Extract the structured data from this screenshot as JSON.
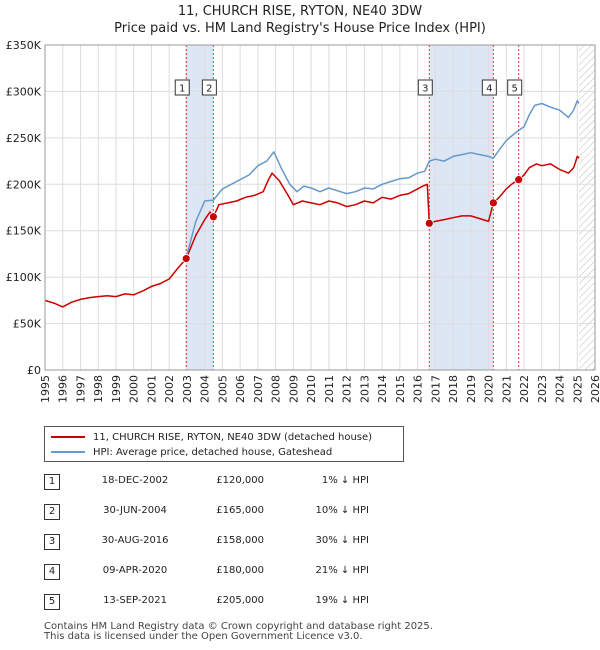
{
  "chart_data": {
    "type": "line",
    "title": "11, CHURCH RISE, RYTON, NE40 3DW",
    "subtitle": "Price paid vs. HM Land Registry's House Price Index (HPI)",
    "xlim": [
      1995,
      2026
    ],
    "ylim": [
      0,
      350000
    ],
    "yticks": [
      0,
      50000,
      100000,
      150000,
      200000,
      250000,
      300000,
      350000
    ],
    "ytick_labels": [
      "£0",
      "£50K",
      "£100K",
      "£150K",
      "£200K",
      "£250K",
      "£300K",
      "£350K"
    ],
    "xticks": [
      1995,
      1996,
      1997,
      1998,
      1999,
      2000,
      2001,
      2002,
      2003,
      2004,
      2005,
      2006,
      2007,
      2008,
      2009,
      2010,
      2011,
      2012,
      2013,
      2014,
      2015,
      2016,
      2017,
      2018,
      2019,
      2020,
      2021,
      2022,
      2023,
      2024,
      2025,
      2026
    ],
    "xtick_labels": [
      "1995",
      "1996",
      "1997",
      "1998",
      "1999",
      "2000",
      "2001",
      "2002",
      "2003",
      "2004",
      "2005",
      "2006",
      "2007",
      "2008",
      "2009",
      "2010",
      "2011",
      "2012",
      "2013",
      "2014",
      "2015",
      "2016",
      "2017",
      "2018",
      "2019",
      "2020",
      "2021",
      "2022",
      "2023",
      "2024",
      "2025",
      "2026"
    ],
    "grid": true,
    "future_hatch_from": 2025.1,
    "series": [
      {
        "name": "11, CHURCH RISE, RYTON, NE40 3DW (detached house)",
        "color": "#cc0000",
        "x": [
          1995.0,
          1995.5,
          1996.0,
          1996.5,
          1997.0,
          1997.5,
          1998.0,
          1998.5,
          1999.0,
          1999.5,
          2000.0,
          2000.5,
          2001.0,
          2001.5,
          2002.0,
          2002.5,
          2002.96,
          2003.5,
          2004.0,
          2004.3,
          2004.49,
          2004.8,
          2005.3,
          2005.8,
          2006.3,
          2006.8,
          2007.3,
          2007.6,
          2007.8,
          2008.2,
          2008.7,
          2009.0,
          2009.5,
          2010.0,
          2010.5,
          2011.0,
          2011.5,
          2012.0,
          2012.5,
          2013.0,
          2013.5,
          2014.0,
          2014.5,
          2015.0,
          2015.5,
          2016.0,
          2016.3,
          2016.55,
          2016.66,
          2017.0,
          2017.5,
          2018.0,
          2018.5,
          2019.0,
          2019.5,
          2020.0,
          2020.27,
          2020.6,
          2021.0,
          2021.3,
          2021.7,
          2022.0,
          2022.3,
          2022.7,
          2023.0,
          2023.5,
          2024.0,
          2024.5,
          2024.8,
          2025.0,
          2025.1
        ],
        "y": [
          75000,
          72000,
          68000,
          73000,
          76000,
          78000,
          79000,
          80000,
          79000,
          82000,
          81000,
          85000,
          90000,
          93000,
          98000,
          110000,
          120000,
          145000,
          162000,
          170000,
          165000,
          178000,
          180000,
          182000,
          186000,
          188000,
          192000,
          205000,
          212000,
          204000,
          188000,
          178000,
          182000,
          180000,
          178000,
          182000,
          180000,
          176000,
          178000,
          182000,
          180000,
          186000,
          184000,
          188000,
          190000,
          195000,
          198000,
          200000,
          158000,
          160000,
          162000,
          164000,
          166000,
          166000,
          163000,
          160000,
          180000,
          186000,
          195000,
          200000,
          205000,
          210000,
          218000,
          222000,
          220000,
          222000,
          216000,
          212000,
          218000,
          230000,
          228000
        ]
      },
      {
        "name": "HPI: Average price, detached house, Gateshead",
        "color": "#6699cc",
        "x": [
          2002.96,
          2003.5,
          2004.0,
          2004.49,
          2005.0,
          2005.5,
          2006.0,
          2006.5,
          2007.0,
          2007.5,
          2007.9,
          2008.3,
          2008.8,
          2009.2,
          2009.6,
          2010.0,
          2010.5,
          2011.0,
          2011.5,
          2012.0,
          2012.5,
          2013.0,
          2013.5,
          2014.0,
          2014.5,
          2015.0,
          2015.5,
          2016.0,
          2016.4,
          2016.66,
          2017.0,
          2017.5,
          2018.0,
          2018.5,
          2019.0,
          2019.5,
          2020.0,
          2020.27,
          2020.6,
          2021.0,
          2021.3,
          2021.7,
          2022.0,
          2022.3,
          2022.6,
          2023.0,
          2023.5,
          2024.0,
          2024.5,
          2024.8,
          2025.0,
          2025.1
        ],
        "y": [
          121000,
          160000,
          182000,
          183000,
          195000,
          200000,
          205000,
          210000,
          220000,
          225000,
          235000,
          218000,
          200000,
          192000,
          198000,
          196000,
          192000,
          196000,
          193000,
          190000,
          192000,
          196000,
          195000,
          200000,
          203000,
          206000,
          207000,
          212000,
          214000,
          225000,
          227000,
          225000,
          230000,
          232000,
          234000,
          232000,
          230000,
          228000,
          237000,
          247000,
          252000,
          258000,
          262000,
          275000,
          285000,
          287000,
          283000,
          280000,
          272000,
          280000,
          290000,
          287000
        ]
      }
    ],
    "sales": [
      {
        "label": "1",
        "x": 2002.96,
        "y": 120000
      },
      {
        "label": "2",
        "x": 2004.49,
        "y": 165000
      },
      {
        "label": "3",
        "x": 2016.66,
        "y": 158000
      },
      {
        "label": "4",
        "x": 2020.27,
        "y": 180000
      },
      {
        "label": "5",
        "x": 2021.7,
        "y": 205000
      }
    ],
    "shaded_bands": [
      [
        2002.96,
        2004.49
      ],
      [
        2016.66,
        2020.27
      ]
    ],
    "single_lines": [
      2021.7
    ],
    "colors": {
      "band": "#dde6f5",
      "grid": "#dddddd",
      "marker_line": "#dd3333"
    }
  },
  "legend": {
    "series1": "11, CHURCH RISE, RYTON, NE40 3DW (detached house)",
    "series2": "HPI: Average price, detached house, Gateshead"
  },
  "transactions": [
    {
      "num": "1",
      "date": "18-DEC-2002",
      "price": "£120,000",
      "hpi": "1% ↓ HPI"
    },
    {
      "num": "2",
      "date": "30-JUN-2004",
      "price": "£165,000",
      "hpi": "10% ↓ HPI"
    },
    {
      "num": "3",
      "date": "30-AUG-2016",
      "price": "£158,000",
      "hpi": "30% ↓ HPI"
    },
    {
      "num": "4",
      "date": "09-APR-2020",
      "price": "£180,000",
      "hpi": "21% ↓ HPI"
    },
    {
      "num": "5",
      "date": "13-SEP-2021",
      "price": "£205,000",
      "hpi": "19% ↓ HPI"
    }
  ],
  "footer": {
    "line1": "Contains HM Land Registry data © Crown copyright and database right 2025.",
    "line2": "This data is licensed under the Open Government Licence v3.0."
  }
}
